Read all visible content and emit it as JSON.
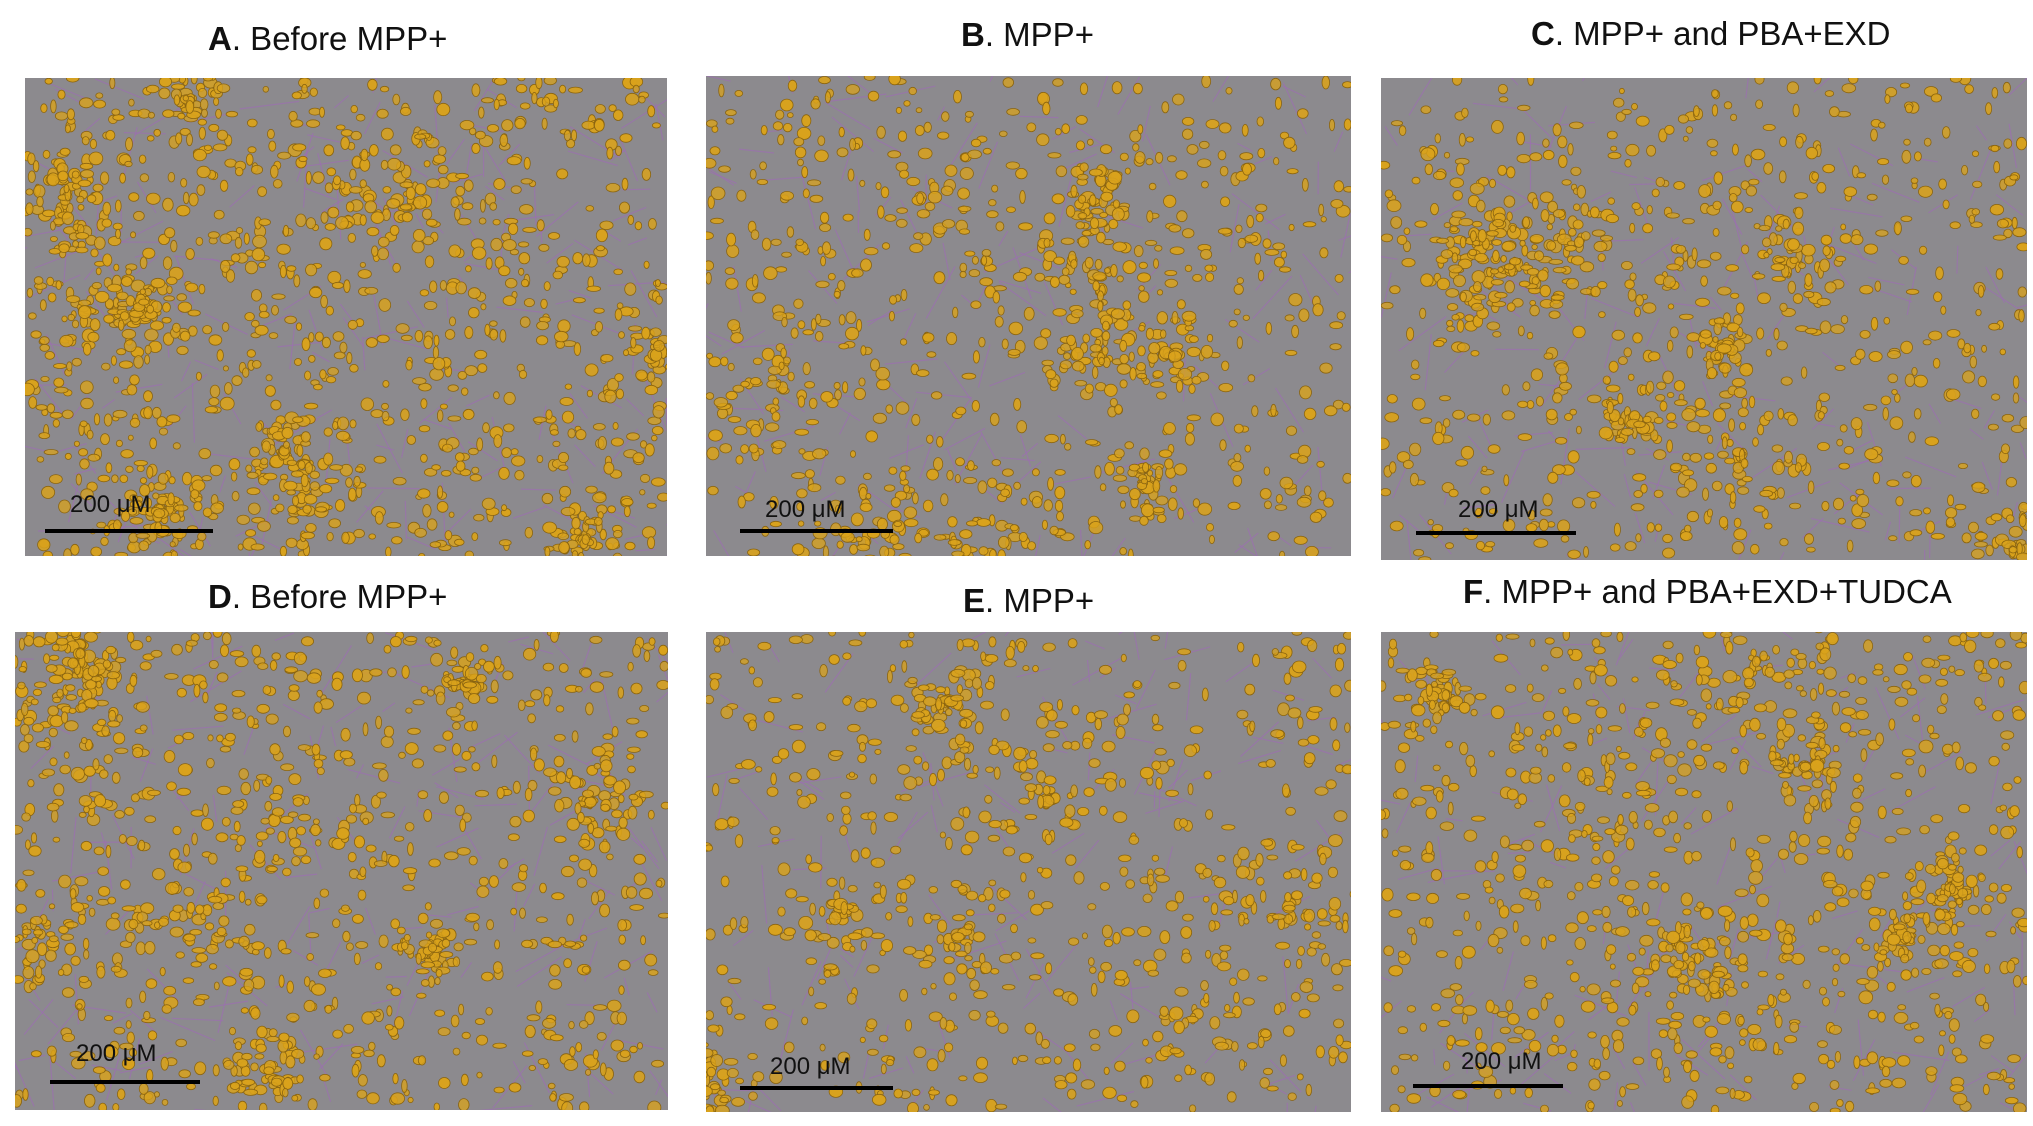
{
  "panels": [
    {
      "id": "A",
      "letter": "A",
      "title": ". Before MPP+",
      "scale_label": "200 μM",
      "density": 1.0
    },
    {
      "id": "B",
      "letter": "B",
      "title": ". MPP+",
      "scale_label": "200 μM",
      "density": 0.62
    },
    {
      "id": "C",
      "letter": "C",
      "title": ". MPP+ and PBA+EXD",
      "scale_label": "200 μM",
      "density": 0.66
    },
    {
      "id": "D",
      "letter": "D",
      "title": ". Before MPP+",
      "scale_label": "200 μM",
      "density": 0.78
    },
    {
      "id": "E",
      "letter": "E",
      "title": ". MPP+",
      "scale_label": "200 μM",
      "density": 0.5
    },
    {
      "id": "F",
      "letter": "F",
      "title": ". MPP+ and PBA+EXD+TUDCA",
      "scale_label": "200 μM",
      "density": 0.72
    }
  ],
  "colors": {
    "background": "#8c8a8e",
    "cell": "#d9a21c",
    "cell_dark": "#8a6410",
    "neurite": "#9b6fb0"
  }
}
